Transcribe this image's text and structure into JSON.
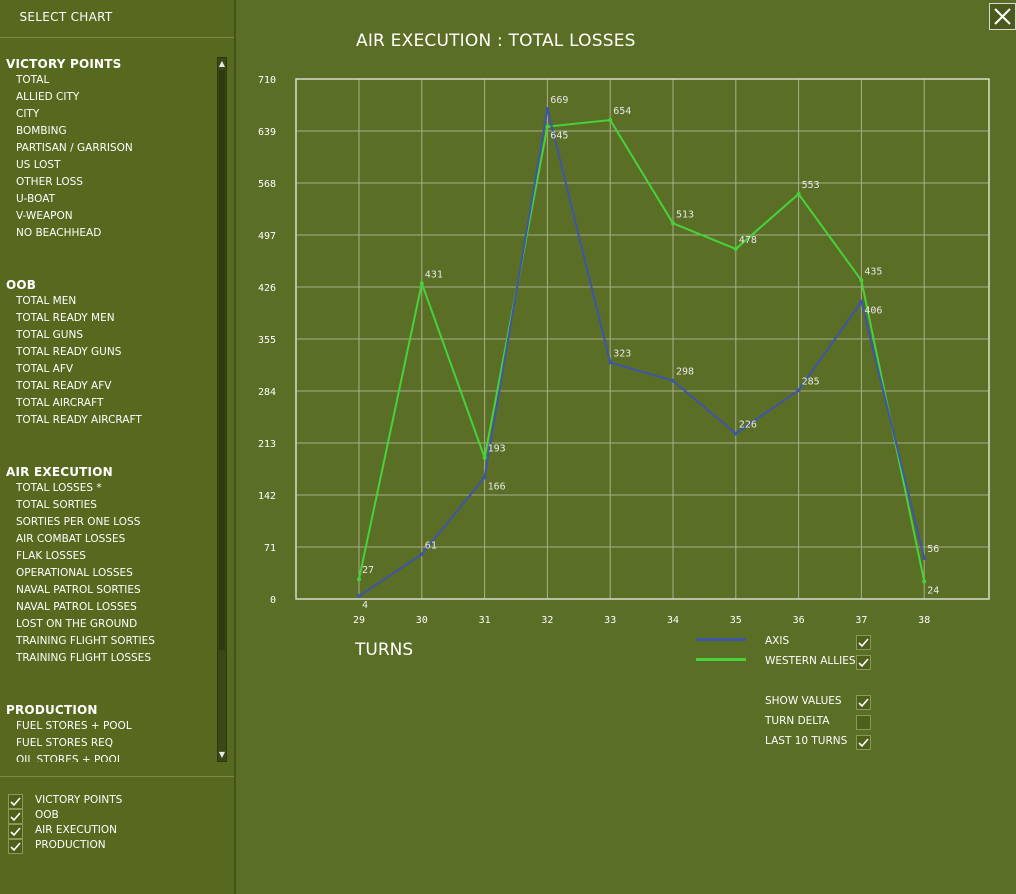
{
  "sidebar": {
    "title": "SELECT CHART",
    "groups": [
      {
        "label": "VICTORY POINTS",
        "items": [
          "TOTAL",
          "ALLIED CITY",
          "CITY",
          "BOMBING",
          "PARTISAN / GARRISON",
          "US LOST",
          "OTHER LOSS",
          "U-BOAT",
          "V-WEAPON",
          "NO BEACHHEAD"
        ]
      },
      {
        "label": "OOB",
        "items": [
          "TOTAL MEN",
          "TOTAL READY MEN",
          "TOTAL GUNS",
          "TOTAL READY GUNS",
          "TOTAL AFV",
          "TOTAL READY AFV",
          "TOTAL AIRCRAFT",
          "TOTAL READY AIRCRAFT"
        ]
      },
      {
        "label": "AIR EXECUTION",
        "items": [
          "TOTAL LOSSES *",
          "TOTAL SORTIES",
          "SORTIES PER ONE LOSS",
          "AIR COMBAT LOSSES",
          "FLAK LOSSES",
          "OPERATIONAL LOSSES",
          "NAVAL PATROL SORTIES",
          "NAVAL PATROL LOSSES",
          "LOST ON THE GROUND",
          "TRAINING FLIGHT SORTIES",
          "TRAINING FLIGHT LOSSES"
        ]
      },
      {
        "label": "PRODUCTION",
        "items": [
          "FUEL STORES + POOL",
          "FUEL STORES REQ",
          "OIL STORES + POOL"
        ]
      }
    ],
    "filters": [
      {
        "label": "VICTORY POINTS",
        "checked": true
      },
      {
        "label": "OOB",
        "checked": true
      },
      {
        "label": "AIR EXECUTION",
        "checked": true
      },
      {
        "label": "PRODUCTION",
        "checked": true
      }
    ]
  },
  "options": [
    {
      "label": "SHOW VALUES",
      "checked": true
    },
    {
      "label": "TURN DELTA",
      "checked": false
    },
    {
      "label": "LAST 10 TURNS",
      "checked": true
    }
  ],
  "colors": {
    "axis": "#3f55a8",
    "western_allies": "#46d23a",
    "grid": "#a6b08c",
    "panel_bg": "#5b6e26"
  },
  "chart_data": {
    "type": "line",
    "title": "AIR EXECUTION : TOTAL LOSSES",
    "xlabel": "TURNS",
    "ylabel": "",
    "x": [
      29,
      30,
      31,
      32,
      33,
      34,
      35,
      36,
      37,
      38
    ],
    "yticks": [
      0,
      71,
      142,
      213,
      284,
      355,
      426,
      497,
      568,
      639,
      710
    ],
    "ylim": [
      0,
      710
    ],
    "grid": true,
    "legend_position": "bottom-right",
    "series": [
      {
        "name": "AXIS",
        "color": "#3f55a8",
        "values": [
          4,
          61,
          166,
          669,
          323,
          298,
          226,
          285,
          406,
          56
        ]
      },
      {
        "name": "WESTERN ALLIES",
        "color": "#46d23a",
        "values": [
          27,
          431,
          193,
          645,
          654,
          513,
          478,
          553,
          435,
          24
        ]
      }
    ]
  }
}
